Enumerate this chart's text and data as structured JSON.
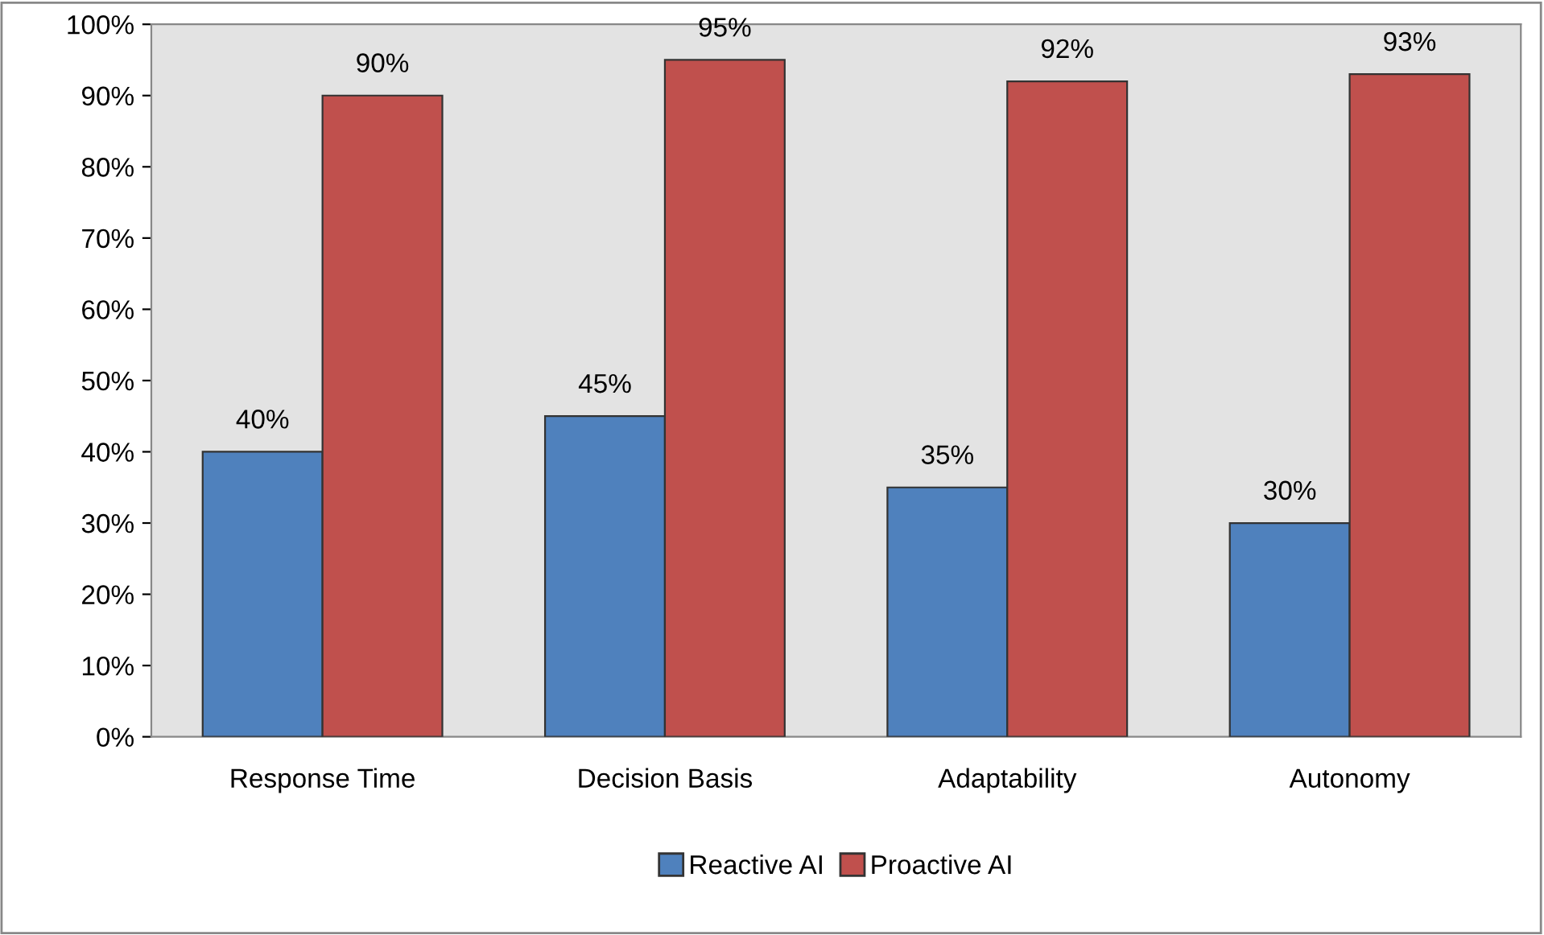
{
  "chart_data": {
    "type": "bar",
    "categories": [
      "Response Time",
      "Decision Basis",
      "Adaptability",
      "Autonomy"
    ],
    "series": [
      {
        "name": "Reactive AI",
        "color": "#4f81bd",
        "values": [
          40,
          45,
          35,
          30
        ],
        "value_labels": [
          "40%",
          "45%",
          "35%",
          "30%"
        ]
      },
      {
        "name": "Proactive AI",
        "color": "#c0504d",
        "values": [
          90,
          95,
          92,
          93
        ],
        "value_labels": [
          "90%",
          "95%",
          "92%",
          "93%"
        ]
      }
    ],
    "ylim": [
      0,
      100
    ],
    "yticks": [
      {
        "value": 0,
        "label": "0%"
      },
      {
        "value": 10,
        "label": "10%"
      },
      {
        "value": 20,
        "label": "20%"
      },
      {
        "value": 30,
        "label": "30%"
      },
      {
        "value": 40,
        "label": "40%"
      },
      {
        "value": 50,
        "label": "50%"
      },
      {
        "value": 60,
        "label": "60%"
      },
      {
        "value": 70,
        "label": "70%"
      },
      {
        "value": 80,
        "label": "80%"
      },
      {
        "value": 90,
        "label": "90%"
      },
      {
        "value": 100,
        "label": "100%"
      }
    ],
    "grid": false,
    "legend": "bottom"
  }
}
